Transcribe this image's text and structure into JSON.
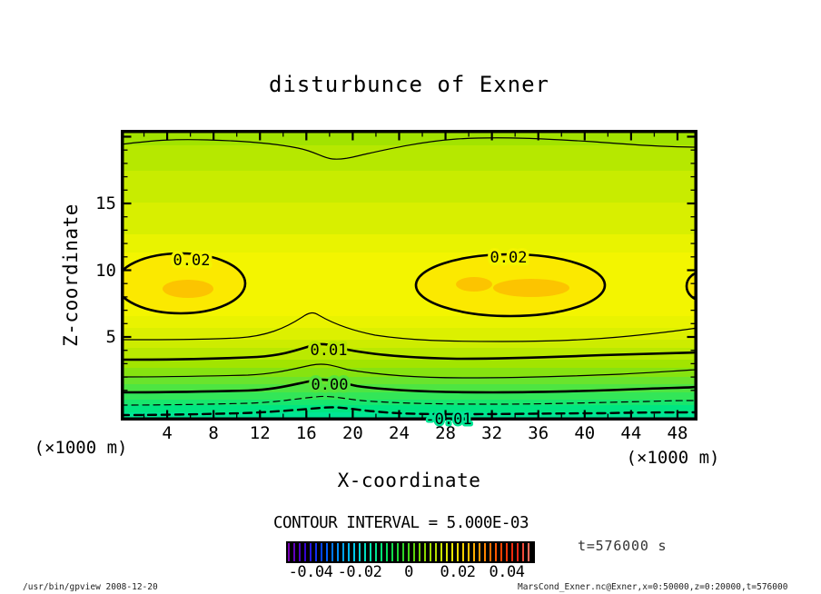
{
  "title": "disturbunce of Exner",
  "chart_data": {
    "type": "heatmap",
    "subtype": "filled-contour-plot",
    "title": "disturbunce of Exner",
    "xlabel": "X-coordinate",
    "ylabel": "Z-coordinate",
    "x_unit_label": "(×1000 m)",
    "y_unit_label": "(×1000 m)",
    "xlim": [
      0,
      50
    ],
    "ylim": [
      0,
      20
    ],
    "x_ticks": [
      4,
      8,
      12,
      16,
      20,
      24,
      28,
      32,
      36,
      40,
      44,
      48
    ],
    "y_ticks": [
      5,
      10,
      15
    ],
    "contour_interval": "CONTOUR INTERVAL = 5.000E-03",
    "annotation": "t=576000 s",
    "contour_labels": [
      {
        "value": "0.02",
        "x": 6,
        "z": 11.2
      },
      {
        "value": "0.02",
        "x": 33.5,
        "z": 11.4
      },
      {
        "value": "0.01",
        "x": 17.6,
        "z": 4.4
      },
      {
        "value": "0.00",
        "x": 17.7,
        "z": 1.8
      },
      {
        "value": "-0.01",
        "x": 27.6,
        "z": -1.2
      }
    ],
    "contour_levels": [
      -0.015,
      -0.01,
      -0.005,
      0.0,
      0.005,
      0.01,
      0.015,
      0.02
    ],
    "features": {
      "maxima": [
        {
          "x": 5.5,
          "z": 9,
          "value": ">0.02"
        },
        {
          "x": 33.5,
          "z": 9,
          "value": ">0.02"
        },
        {
          "x": 50,
          "z": 9,
          "value": ">0.02"
        }
      ],
      "minimum": {
        "z": 0,
        "value": "<-0.01"
      },
      "negative_contours_style": "dashed"
    },
    "colors": {
      "fill_max_orange": "#fcc400",
      "fill_ellipse_yellow": "#fbe900",
      "contour_line": "#000000"
    },
    "fill_bands": [
      {
        "until": 17,
        "color": "#a2e300"
      },
      {
        "until": 45,
        "color": "#b6e800"
      },
      {
        "until": 80,
        "color": "#c8ec00"
      },
      {
        "until": 115,
        "color": "#d8ef00"
      },
      {
        "until": 135,
        "color": "#e9f300"
      },
      {
        "until": 205,
        "color": "#f3f500"
      },
      {
        "until": 218,
        "color": "#e9f300"
      },
      {
        "until": 231,
        "color": "#dcf000"
      },
      {
        "until": 240,
        "color": "#cdec00"
      },
      {
        "until": 253,
        "color": "#bae900"
      },
      {
        "until": 262,
        "color": "#a2e400"
      },
      {
        "until": 272,
        "color": "#86e310"
      },
      {
        "until": 280,
        "color": "#6ae42c"
      },
      {
        "until": 289,
        "color": "#4ee542"
      },
      {
        "until": 297,
        "color": "#33e658"
      },
      {
        "until": 303,
        "color": "#18e66d"
      },
      {
        "until": 311,
        "color": "#00e681"
      },
      {
        "until": 318,
        "color": "#00e694"
      },
      {
        "until": 320,
        "color": "#00e3a3"
      }
    ],
    "colorbar": {
      "tick_labels": [
        "-0.04",
        "-0.02",
        "0",
        "0.02",
        "0.04"
      ],
      "range": [
        -0.05,
        0.05
      ],
      "gradient": [
        "#7a00b3",
        "#3a00d0",
        "#0040ff",
        "#008cff",
        "#00c8f0",
        "#00e6b0",
        "#00e060",
        "#2ad428",
        "#70d400",
        "#b4de00",
        "#ecec00",
        "#ffc800",
        "#ff8800",
        "#ff4400",
        "#e82010",
        "#ff8878"
      ]
    },
    "legend_position": "bottom",
    "grid": false
  },
  "footer": {
    "left": "/usr/bin/gpview  2008-12-20",
    "right": "MarsCond_Exner.nc@Exner,x=0:50000,z=0:20000,t=576000"
  }
}
